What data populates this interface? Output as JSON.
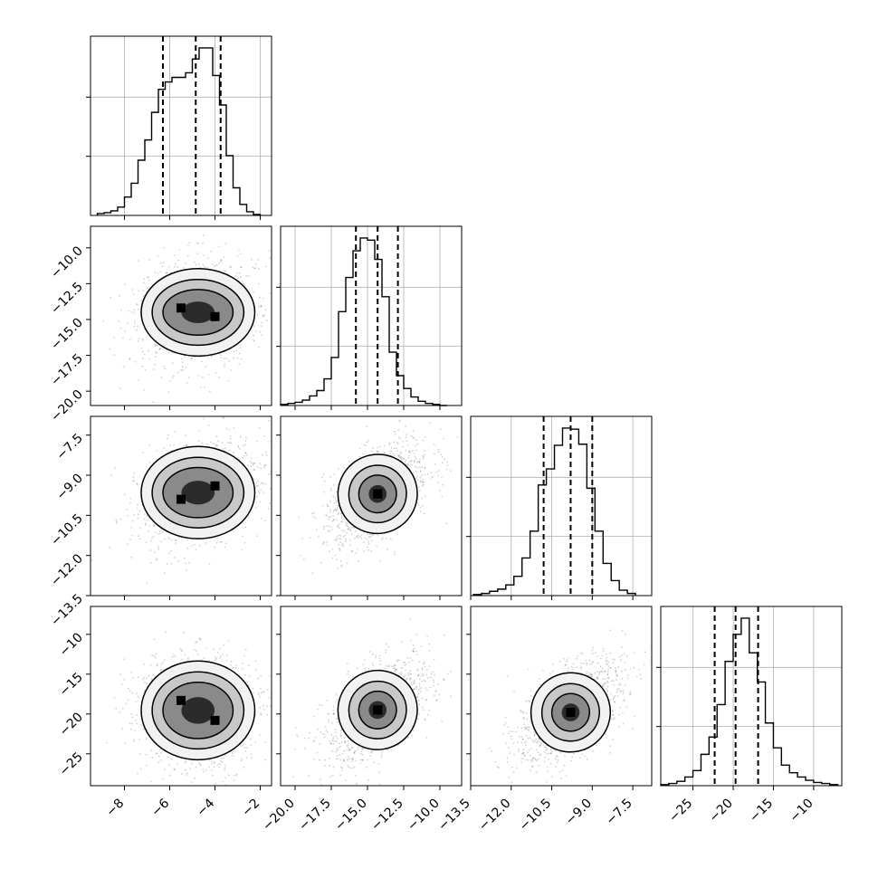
{
  "chart_data": {
    "type": "corner",
    "grid": true,
    "n_params": 4,
    "param_ranges": [
      [
        -9.5,
        -1.5
      ],
      [
        -21,
        -8.5
      ],
      [
        -13.5,
        -6.8
      ],
      [
        -29,
        -6.5
      ]
    ],
    "param_ticks": [
      [
        "−8",
        "−6",
        "−4",
        "−2"
      ],
      [
        "−20.0",
        "−17.5",
        "−15.0",
        "−12.5",
        "−10.0"
      ],
      [
        "−13.5",
        "−12.0",
        "−10.5",
        "−9.0",
        "−7.5"
      ],
      [
        "−25",
        "−20",
        "−15",
        "−10"
      ]
    ],
    "param_tick_values": [
      [
        -8,
        -6,
        -4,
        -2
      ],
      [
        -20,
        -17.5,
        -15,
        -12.5,
        -10
      ],
      [
        -13.5,
        -12,
        -10.5,
        -9,
        -7.5
      ],
      [
        -25,
        -20,
        -15,
        -10
      ]
    ],
    "histograms": [
      {
        "bin_edges": [
          -9.2,
          -8.9,
          -8.6,
          -8.3,
          -8.0,
          -7.7,
          -7.4,
          -7.1,
          -6.8,
          -6.5,
          -6.2,
          -5.9,
          -5.6,
          -5.3,
          -5.0,
          -4.7,
          -4.4,
          -4.1,
          -3.8,
          -3.5,
          -3.2,
          -2.9,
          -2.6,
          -2.3,
          -2.0
        ],
        "counts": [
          2,
          3,
          5,
          9,
          20,
          35,
          60,
          82,
          112,
          137,
          145,
          150,
          150,
          155,
          170,
          182,
          182,
          152,
          120,
          65,
          30,
          12,
          4,
          1
        ],
        "quantiles": [
          -6.3,
          -4.85,
          -3.75
        ]
      },
      {
        "bin_edges": [
          -21.0,
          -20.5,
          -20.0,
          -19.5,
          -19.0,
          -18.5,
          -18.0,
          -17.5,
          -17.0,
          -16.5,
          -16.0,
          -15.5,
          -15.0,
          -14.5,
          -14.0,
          -13.5,
          -13.0,
          -12.5,
          -12.0,
          -11.5,
          -11.0,
          -10.5,
          -10.0,
          -9.5
        ],
        "counts": [
          1,
          2,
          3,
          5,
          9,
          14,
          25,
          45,
          88,
          120,
          145,
          157,
          155,
          137,
          102,
          50,
          28,
          16,
          8,
          4,
          2,
          1,
          0
        ],
        "quantiles": [
          -15.8,
          -14.3,
          -12.9
        ]
      },
      {
        "bin_edges": [
          -13.4,
          -13.1,
          -12.8,
          -12.5,
          -12.2,
          -11.9,
          -11.6,
          -11.3,
          -11.0,
          -10.7,
          -10.4,
          -10.1,
          -9.8,
          -9.5,
          -9.2,
          -8.9,
          -8.6,
          -8.3,
          -8.0,
          -7.7,
          -7.4
        ],
        "counts": [
          1,
          2,
          4,
          6,
          10,
          18,
          35,
          60,
          103,
          118,
          140,
          156,
          155,
          141,
          100,
          60,
          30,
          14,
          5,
          2
        ],
        "quantiles": [
          -10.8,
          -9.8,
          -9.0
        ]
      },
      {
        "bin_edges": [
          -29,
          -28,
          -27,
          -26,
          -25,
          -24,
          -23,
          -22,
          -21,
          -20,
          -19,
          -18,
          -17,
          -16,
          -15,
          -14,
          -13,
          -12,
          -11,
          -10,
          -9,
          -8,
          -7
        ],
        "counts": [
          1,
          2,
          4,
          8,
          14,
          29,
          45,
          75,
          115,
          140,
          155,
          123,
          96,
          58,
          35,
          19,
          12,
          8,
          5,
          3,
          2,
          1
        ],
        "quantiles": [
          -22.3,
          -19.7,
          -16.9
        ]
      }
    ],
    "pair_centers": {
      "1_0": [
        [
          -5.5,
          -14.2
        ],
        [
          -4.0,
          -14.8
        ]
      ],
      "2_0": [
        [
          -5.5,
          -9.9
        ],
        [
          -4.0,
          -9.4
        ]
      ],
      "2_1": [
        [
          -14.3,
          -9.7
        ],
        [
          -14.3,
          -9.7
        ]
      ],
      "3_0": [
        [
          -5.5,
          -18.3
        ],
        [
          -4.0,
          -20.8
        ]
      ],
      "3_1": [
        [
          -14.3,
          -19.5
        ],
        [
          -14.3,
          -19.5
        ]
      ],
      "3_2": [
        [
          -9.8,
          -19.8
        ],
        [
          -9.8,
          -19.8
        ]
      ]
    }
  }
}
